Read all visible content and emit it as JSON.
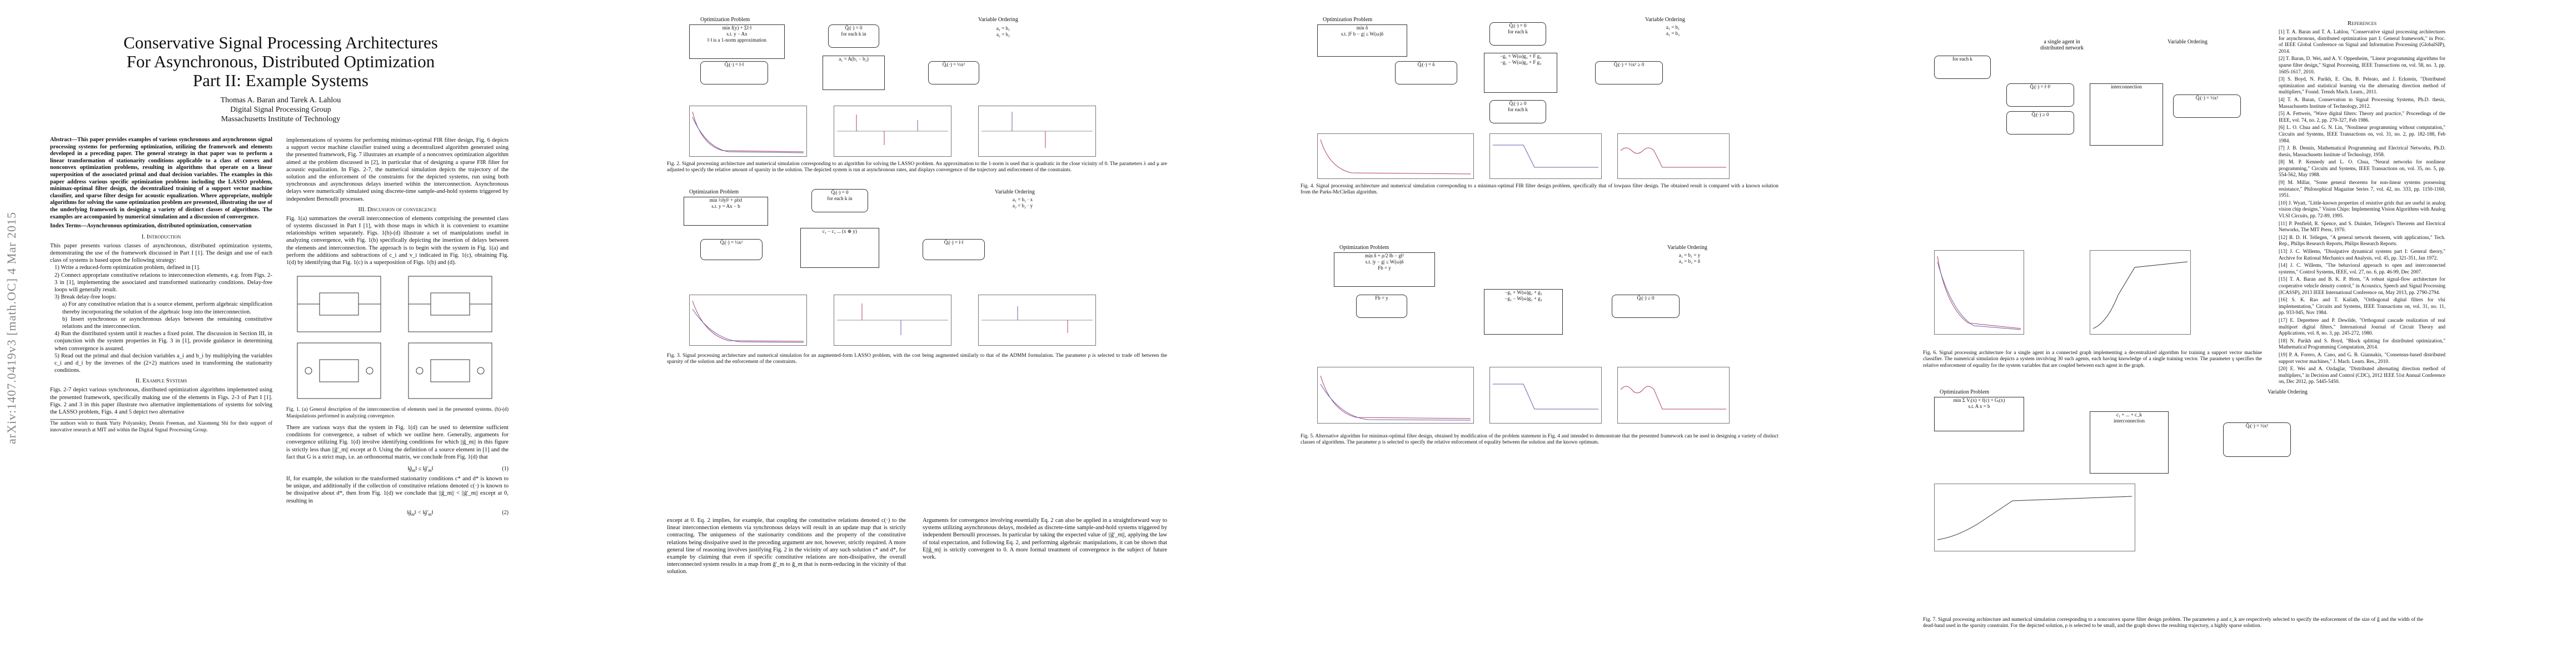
{
  "arxiv_id": "arXiv:1407.0419v3  [math.OC]  4 Mar 2015",
  "paper": {
    "title_lines": [
      "Conservative Signal Processing Architectures",
      "For Asynchronous, Distributed Optimization",
      "Part II: Example Systems"
    ],
    "authors": "Thomas A. Baran and Tarek A. Lahlou",
    "affil1": "Digital Signal Processing Group",
    "affil2": "Massachusetts Institute of Technology",
    "abstract": "Abstract—This paper provides examples of various synchronous and asynchronous signal processing systems for performing optimization, utilizing the framework and elements developed in a preceding paper. The general strategy in that paper was to perform a linear transformation of stationarity conditions applicable to a class of convex and nonconvex optimization problems, resulting in algorithms that operate on a linear superposition of the associated primal and dual decision variables. The examples in this paper address various specific optimization problems including the LASSO problem, minimax-optimal filter design, the decentralized training of a support vector machine classifier, and sparse filter design for acoustic equalization. Where appropriate, multiple algorithms for solving the same optimization problem are presented, illustrating the use of the underlying framework in designing a variety of distinct classes of algorithms. The examples are accompanied by numerical simulation and a discussion of convergence.",
    "index_terms": "Index Terms—Asynchronous optimization, distributed optimization, conservation",
    "sec1": "I. Introduction",
    "intro": "This paper presents various classes of asynchronous, distributed optimization systems, demonstrating the use of the framework discussed in Part I [1]. The design and use of each class of systems is based upon the following strategy:",
    "steps": [
      "1) Write a reduced-form optimization problem, defined in [1].",
      "2) Connect appropriate constitutive relations to interconnection elements, e.g. from Figs. 2-3 in [1], implementing the associated and transformed stationarity conditions. Delay-free loops will generally result.",
      "3) Break delay-free loops:",
      "a) For any constitutive relation that is a source element, perform algebraic simplification thereby incorporating the solution of the algebraic loop into the interconnection.",
      "b) Insert synchronous or asynchronous delays between the remaining constitutive relations and the interconnection.",
      "4) Run the distributed system until it reaches a fixed point. The discussion in Section III, in conjunction with the system properties in Fig. 3 in [1], provide guidance in determining when convergence is assured.",
      "5) Read out the primal and dual decision variables a_i and b_i by multiplying the variables c_i and d_i by the inverses of the (2×2) matrices used in transforming the stationarity conditions."
    ],
    "sec2": "II. Example Systems",
    "examples_text": "Figs. 2-7 depict various synchronous, distributed optimization algorithms implemented using the presented framework, specifically making use of the elements in Figs. 2-3 of Part I [1]. Figs. 2 and 3 in this paper illustrate two alternative implementations of systems for solving the LASSO problem, Figs. 4 and 5 depict two alternative",
    "footnote": "The authors wish to thank Yuriy Polyanskiy, Dennis Freeman, and Xiaomeng Shi for their support of innovative research at MIT and within the Digital Signal Processing Group.",
    "col2_text": "implementations of systems for performing minimax-optimal FIR filter design, Fig. 6 depicts a support vector machine classifier trained using a decentralized algorithm generated using the presented framework, Fig. 7 illustrates an example of a nonconvex optimization algorithm aimed at the problem discussed in [2], in particular that of designing a sparse FIR filter for acoustic equalization. In Figs. 2-7, the numerical simulation depicts the trajectory of the solution and the enforcement of the constraints for the depicted systems, run using both synchronous and asynchronous delays inserted within the interconnection. Asynchronous delays were numerically simulated using discrete-time sample-and-hold systems triggered by independent Bernoulli processes.",
    "sec3": "III. Discussion of convergence",
    "col2_text2": "Fig. 1(a) summarizes the overall interconnection of elements comprising the presented class of systems discussed in Part I [1], with those maps in which it is convenient to examine relationships written separately. Figs. 1(b)-(d) illustrate a set of manipulations useful in analyzing convergence, with Fig. 1(b) specifically depicting the insertion of delays between the elements and interconnection. The approach is to begin with the system in Fig. 1(a) and perform the additions and subtractions of c_i and v_i indicated in Fig. 1(c), obtaining Fig. 1(d) by identifying that Fig. 1(c) is a superposition of Figs. 1(b) and (d).",
    "fig1_caption": "Fig. 1. (a) General description of the interconnection of elements used in the presented systems. (b)-(d) Manipulations performed in analyzing convergence.",
    "col2_text3": "There are various ways that the system in Fig. 1(d) can be used to determine sufficient conditions for convergence, a subset of which we outline here. Generally, arguments for convergence utilizing Fig. 1(d) involve identifying conditions for which ||ĝ_m|| in this figure is strictly less than ||ĝ'_m|| except at 0. Using the definition of a source element in [1] and the fact that G is a strict map, i.e. an orthonormal matrix, we conclude from Fig. 1(d) that",
    "col2_text4": "If, for example, the solution to the transformed stationarity conditions c* and d* is known to be unique, and additionally if the collection of constitutive relations denoted c(·) is known to be dissipative about d*, then from Fig. 1(d) we conclude that ||ĝ_m|| < ||ĝ'_m|| except at 0, resulting in",
    "eq1": "(1)",
    "eq2": "(2)",
    "col3_text": "except at 0. Eq. 2 implies, for example, that coupling the constitutive relations denoted c(·) to the linear interconnection elements via synchronous delays will result in an update map that is strictly contracting. The uniqueness of the stationarity conditions and the property of the constitutive relations being dissipative used in the preceding argument are not, however, strictly required. A more general line of reasoning involves justifying Fig. 2 in the vicinity of any such solution c* and d*, for example by claiming that even if specific constitutive relations are non-dissipative, the overall interconnected system results in a map from ĝ'_m to ĝ_m that is norm-reducing in the vicinity of that solution.",
    "col3_text2": "Arguments for convergence involving essentially Eq. 2 can also be applied in a straightforward way to systems utilizing asynchronous delays, modeled as discrete-time sample-and-hold systems triggered by independent Bernoulli processes. In particular by taking the expected value of ||ĝ'_m||, applying the law of total expectation, and following Eq. 2, and performing algebraic manipulations, it can be shown that E||ĝ_m|| is strictly convergent to 0. A more formal treatment of convergence is the subject of future work.",
    "fig2_caption": "Fig. 2. Signal processing architecture and numerical simulation corresponding to an algorithm for solving the LASSO problem. An approximation to the 1-norm is used that is quadratic in the close vicinity of 0. The parameters λ and μ are adjusted to specify the relative amount of sparsity in the solution. The depicted system is run at asynchronous rates, and displays convergence of the trajectory and enforcement of the constraints.",
    "fig3_caption": "Fig. 3. Signal processing architecture and numerical simulation for an augmented-form LASSO problem, with the cost being augmented similarly to that of the ADMM formulation. The parameter ρ is selected to trade off between the sparsity of the solution and the enforcement of the constraints.",
    "fig4_caption": "Fig. 4. Signal processing architecture and numerical simulation corresponding to a minimax-optimal FIR filter design problem, specifically that of lowpass filter design. The obtained result is compared with a known solution from the Parks-McClellan algorithm.",
    "fig5_caption": "Fig. 5. Alternative algorithm for minimax-optimal filter design, obtained by modification of the problem statement in Fig. 4 and intended to demonstrate that the presented framework can be used in designing a variety of distinct classes of algorithms. The parameter ρ is selected to specify the relative enforcement of equality between the solution and the known optimum.",
    "fig6_caption": "Fig. 6. Signal processing architecture for a single agent in a connected graph implementing a decentralized algorithm for training a support vector machine classifier. The numerical simulation depicts a system involving 30 such agents, each having knowledge of a single training vector. The parameter γ specifies the relative enforcement of equality for the system variables that are coupled between each agent in the graph.",
    "fig7_caption": "Fig. 7. Signal processing architecture and numerical simulation corresponding to a nonconvex sparse filter design problem. The parameters ρ and ε_k are respectively selected to specify the enforcement of the size of ĝ and the width of the dead-band used in the sparsity constraint. For the depicted solution, ρ is selected to be small, and the graph shows the resulting trajectory, a highly sparse solution.",
    "references_head": "References",
    "references": [
      "[1] T. A. Baran and T. A. Lahlou, \"Conservative signal processing architectures for asynchronous, distributed optimization part I: General framework,\" in Proc. of IEEE Global Conference on Signal and Information Processing (GlobalSIP), 2014.",
      "[2] T. Baran, D. Wei, and A. V. Oppenheim, \"Linear programming algorithms for sparse filter design,\" Signal Processing, IEEE Transactions on, vol. 58, no. 3, pp. 1605-1617, 2010.",
      "[3] S. Boyd, N. Parikh, E. Chu, B. Peleato, and J. Eckstein, \"Distributed optimization and statistical learning via the alternating direction method of multipliers,\" Found. Trends Mach. Learn., 2011.",
      "[4] T. A. Baran, Conservation in Signal Processing Systems, Ph.D. thesis, Massachusetts Institute of Technology, 2012.",
      "[5] A. Fettweis, \"Wave digital filters: Theory and practice,\" Proceedings of the IEEE, vol. 74, no. 2, pp. 270-327, Feb 1986.",
      "[6] L. O. Chua and G. N. Lin, \"Nonlinear programming without computation,\" Circuits and Systems, IEEE Transactions on, vol. 31, no. 2, pp. 182-188, Feb 1984.",
      "[7] J. B. Dennis, Mathematical Programming and Electrical Networks, Ph.D. thesis, Massachusetts Institute of Technology, 1958.",
      "[8] M. P. Kennedy and L. O. Chua, \"Neural networks for nonlinear programming,\" Circuits and Systems, IEEE Transactions on, vol. 35, no. 5, pp. 554-562, May 1988.",
      "[9] M. Millar, \"Some general theorems for non-linear systems possessing resistance,\" Philosophical Magazine Series 7, vol. 42, no. 333, pp. 1150-1160, 1951.",
      "[10] J. Wyatt, \"Little-known properties of resistive grids that are useful in analog vision chip designs,\" Vision Chips: Implementing Vision Algorithms with Analog VLSI Circuits, pp. 72-89, 1995.",
      "[11] P. Penfield, R. Spence, and S. Duinker, Tellegen's Theorem and Electrical Networks, The MIT Press, 1970.",
      "[12] B. D. H. Tellegen, \"A general network theorem, with applications,\" Tech. Rep., Philips Research Reports, Philips Research Reports.",
      "[13] J. C. Willems, \"Dissipative dynamical systems part I: General theory,\" Archive for Rational Mechanics and Analysis, vol. 45, pp. 321-351, Jan 1972.",
      "[14] J. C. Willems, \"The behavioral approach to open and interconnected systems,\" Control Systems, IEEE, vol. 27, no. 6, pp. 46-99, Dec 2007.",
      "[15] T. A. Baran and B. K. P. Horn, \"A robust signal-flow architecture for cooperative vehicle density control,\" in Acoustics, Speech and Signal Processing (ICASSP), 2013 IEEE International Conference on, May 2013, pp. 2790-2794.",
      "[16] S. K. Rao and T. Kailath, \"Orthogonal digital filters for vlsi implementation,\" Circuits and Systems, IEEE Transactions on, vol. 31, no. 11, pp. 933-945, Nov 1984.",
      "[17] E. Deprettere and P. Dewilde, \"Orthogonal cascade realization of real multiport digital filters,\" International Journal of Circuit Theory and Applications, vol. 8, no. 3, pp. 245-272, 1980.",
      "[18] N. Parikh and S. Boyd, \"Block splitting for distributed optimization,\" Mathematical Programming Computation, 2014.",
      "[19] P. A. Forero, A. Cano, and G. B. Giannakis, \"Consensus-based distributed support vector machines,\" J. Mach. Learn. Res., 2010.",
      "[20] E. Wei and A. Ozdaglar, \"Distributed alternating direction method of multipliers,\" in Decision and Control (CDC), 2012 IEEE 51st Annual Conference on, Dec 2012, pp. 5445-5450."
    ],
    "labels": {
      "opt_problem": "Optimization Problem",
      "var_ordering": "Variable Ordering",
      "for_each": "for each k in",
      "single_agent": "a single agent in distributed network",
      "fixed_line": "Fixed line"
    }
  }
}
